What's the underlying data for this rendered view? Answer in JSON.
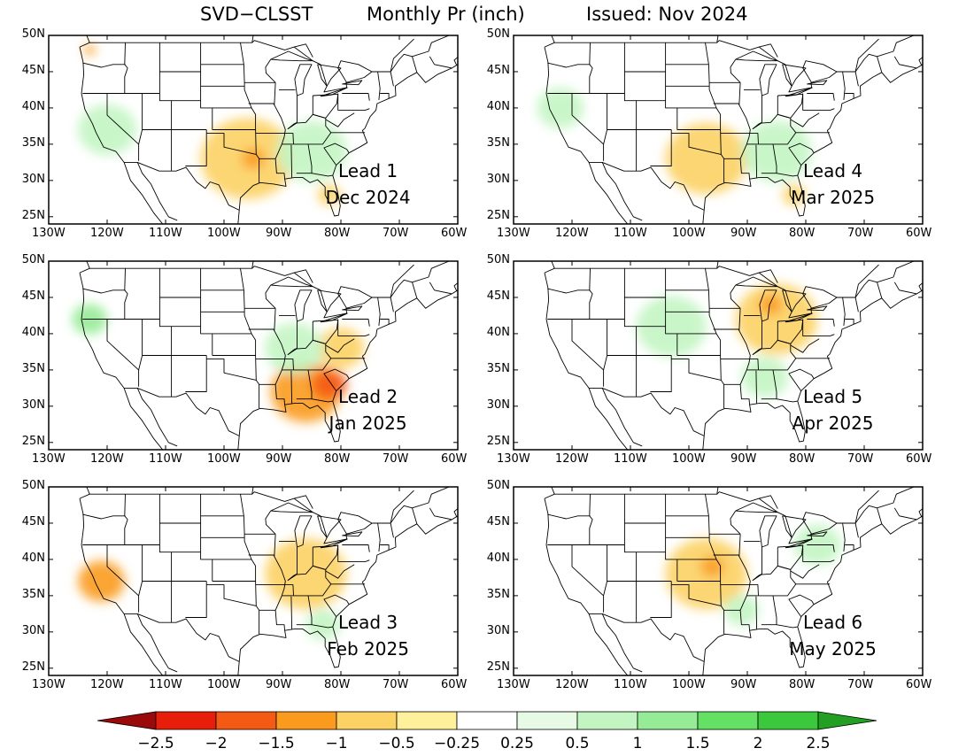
{
  "header": {
    "model": "SVD−CLSST",
    "variable": "Monthly Pr (inch)",
    "issued": "Issued: Nov 2024"
  },
  "axes": {
    "lat_labels": [
      "50N",
      "45N",
      "40N",
      "35N",
      "30N",
      "25N"
    ],
    "lon_labels": [
      "130W",
      "120W",
      "110W",
      "100W",
      "90W",
      "80W",
      "70W",
      "60W"
    ],
    "lat_range": [
      24,
      50
    ],
    "lon_range": [
      -130,
      -60
    ]
  },
  "panels": [
    {
      "lead": "Lead 1",
      "month": "Dec 2024",
      "anomalies": [
        {
          "lon": -96,
          "lat": 33,
          "value": -0.5,
          "size": 8
        },
        {
          "lon": -95,
          "lat": 33,
          "value": -1,
          "size": 2
        },
        {
          "lon": -82,
          "lat": 28,
          "value": -0.5,
          "size": 2
        },
        {
          "lon": -120,
          "lat": 37,
          "value": 0.5,
          "size": 5
        },
        {
          "lon": -85,
          "lat": 34,
          "value": 0.5,
          "size": 6
        },
        {
          "lon": -123,
          "lat": 48,
          "value": -1,
          "size": 1
        }
      ]
    },
    {
      "lead": "Lead 4",
      "month": "Mar 2025",
      "anomalies": [
        {
          "lon": -97,
          "lat": 33,
          "value": -0.5,
          "size": 7
        },
        {
          "lon": -85,
          "lat": 34,
          "value": 0.5,
          "size": 6
        },
        {
          "lon": -122,
          "lat": 40,
          "value": 0.5,
          "size": 4
        },
        {
          "lon": -82,
          "lat": 28,
          "value": -0.5,
          "size": 2
        }
      ]
    },
    {
      "lead": "Lead 2",
      "month": "Jan 2025",
      "anomalies": [
        {
          "lon": -86,
          "lat": 32,
          "value": -1,
          "size": 6
        },
        {
          "lon": -82,
          "lat": 33,
          "value": -1.5,
          "size": 3
        },
        {
          "lon": -80,
          "lat": 38,
          "value": -0.5,
          "size": 4
        },
        {
          "lon": -123,
          "lat": 42,
          "value": 1,
          "size": 3
        },
        {
          "lon": -88,
          "lat": 38,
          "value": 0.5,
          "size": 5
        }
      ]
    },
    {
      "lead": "Lead 5",
      "month": "Apr 2025",
      "anomalies": [
        {
          "lon": -85,
          "lat": 42,
          "value": -0.5,
          "size": 7
        },
        {
          "lon": -86,
          "lat": 44,
          "value": -1,
          "size": 2
        },
        {
          "lon": -103,
          "lat": 41,
          "value": 0.5,
          "size": 6
        },
        {
          "lon": -87,
          "lat": 34,
          "value": 0.5,
          "size": 4
        }
      ]
    },
    {
      "lead": "Lead 3",
      "month": "Feb 2025",
      "anomalies": [
        {
          "lon": -121,
          "lat": 37,
          "value": -1,
          "size": 4
        },
        {
          "lon": -86,
          "lat": 38,
          "value": -0.5,
          "size": 7
        },
        {
          "lon": -83,
          "lat": 31,
          "value": 0.5,
          "size": 3
        }
      ]
    },
    {
      "lead": "Lead 6",
      "month": "May 2025",
      "anomalies": [
        {
          "lon": -97,
          "lat": 38,
          "value": -0.5,
          "size": 7
        },
        {
          "lon": -96,
          "lat": 39,
          "value": -1,
          "size": 2
        },
        {
          "lon": -78,
          "lat": 42,
          "value": 0.5,
          "size": 4
        },
        {
          "lon": -91,
          "lat": 33,
          "value": 0.5,
          "size": 3
        }
      ]
    }
  ],
  "colorbar": {
    "labels": [
      "−2.5",
      "−2",
      "−1.5",
      "−1",
      "−0.5",
      "−0.25",
      "0.25",
      "0.5",
      "1",
      "1.5",
      "2",
      "2.5"
    ],
    "levels": [
      -2.5,
      -2,
      -1.5,
      -1,
      -0.5,
      -0.25,
      0.25,
      0.5,
      1,
      1.5,
      2,
      2.5
    ],
    "colors": [
      "#9a0a0a",
      "#e61e0a",
      "#f55a14",
      "#fa9b1e",
      "#fcd264",
      "#fff09b",
      "#ffffff",
      "#e6fae6",
      "#c3f5c3",
      "#96eb96",
      "#64e164",
      "#3cc83c",
      "#23a023"
    ]
  }
}
